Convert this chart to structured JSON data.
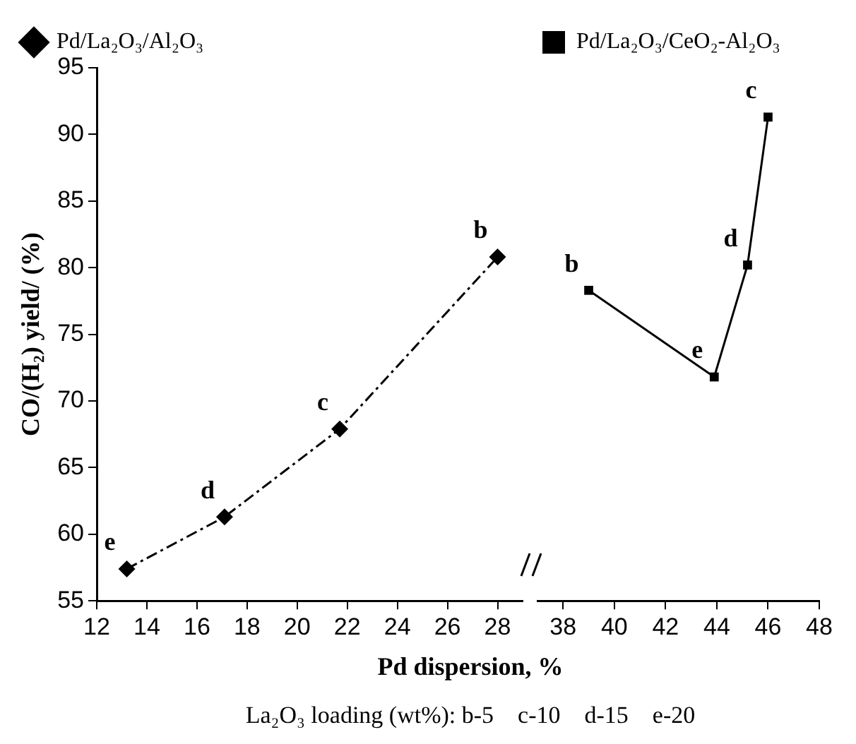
{
  "chart_data": [
    {
      "type": "line",
      "xlabel": "Pd dispersion, %",
      "ylabel": "CO/(H₂) yield/ (%)",
      "xlim": [
        12,
        29
      ],
      "xticks": [
        12,
        14,
        16,
        18,
        20,
        22,
        24,
        26,
        28
      ],
      "ylim": [
        55,
        95
      ],
      "yticks": [
        55,
        60,
        65,
        70,
        75,
        80,
        85,
        90,
        95
      ],
      "grid": false,
      "legend": "top left",
      "series": [
        {
          "name": "Pd/La₂O₃/Al₂O₃",
          "color": "#000000",
          "marker": "diamond",
          "line_style": "dashed",
          "x": [
            13.2,
            17.1,
            21.7,
            28.0
          ],
          "values": [
            57.4,
            61.3,
            67.9,
            80.8
          ]
        }
      ],
      "annotations": [
        {
          "text": "e",
          "x": 13.2,
          "y": 57.4
        },
        {
          "text": "d",
          "x": 17.1,
          "y": 61.3
        },
        {
          "text": "c",
          "x": 21.7,
          "y": 67.9
        },
        {
          "text": "b",
          "x": 28.0,
          "y": 80.8
        },
        "La₂O₃ loading (wt%): b-5    c-10    d-15    e-20"
      ]
    },
    {
      "type": "line",
      "xlim": [
        37,
        48
      ],
      "xticks": [
        38,
        40,
        42,
        44,
        46,
        48
      ],
      "ylim": [
        55,
        95
      ],
      "tick_labels": "x",
      "grid": false,
      "legend": "top left",
      "series": [
        {
          "name": "Pd/La₂O₃/CeO₂-Al₂O₃",
          "color": "#000000",
          "marker": "square",
          "line_style": "solid",
          "x": [
            39.0,
            43.9,
            45.2,
            46.0
          ],
          "values": [
            78.3,
            71.8,
            80.2,
            91.3
          ]
        }
      ],
      "annotations": [
        {
          "text": "b",
          "x": 39.0,
          "y": 78.3
        },
        {
          "text": "e",
          "x": 43.9,
          "y": 71.8
        },
        {
          "text": "d",
          "x": 45.2,
          "y": 80.2
        },
        {
          "text": "c",
          "x": 46.0,
          "y": 91.3
        }
      ]
    }
  ]
}
